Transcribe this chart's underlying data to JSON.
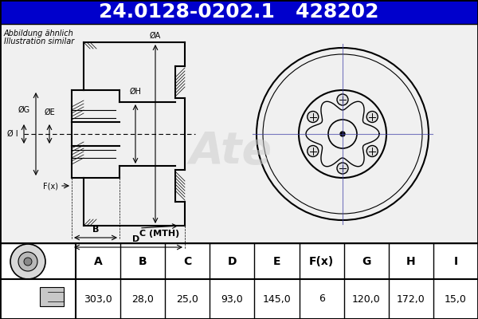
{
  "title_text": "24.0128-0202.1   428202",
  "title_bg": "#0000CC",
  "title_fg": "#FFFFFF",
  "title_fontsize": 18,
  "note_line1": "Abbildung ähnlich",
  "note_line2": "Illustration similar",
  "table_headers": [
    "A",
    "B",
    "C",
    "D",
    "E",
    "F(x)",
    "G",
    "H",
    "I"
  ],
  "table_values": [
    "303,0",
    "28,0",
    "25,0",
    "93,0",
    "145,0",
    "6",
    "120,0",
    "172,0",
    "15,0"
  ],
  "bg_color": "#FFFFFF",
  "drawing_bg": "#E8E8E8",
  "border_color": "#000000",
  "table_header_fontsize": 10,
  "table_value_fontsize": 9
}
